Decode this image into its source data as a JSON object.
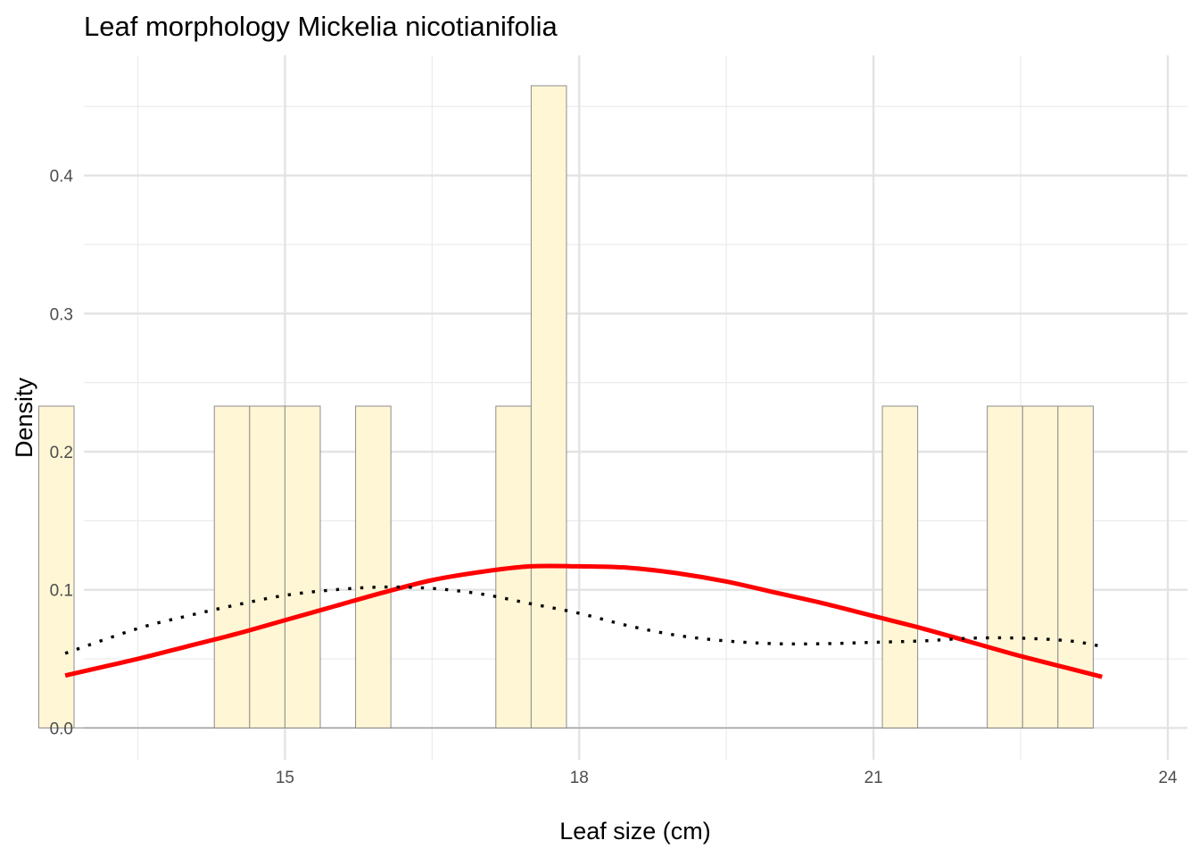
{
  "chart_data": {
    "type": "bar",
    "title": "Leaf morphology Mickelia nicotianifolia",
    "xlabel": "Leaf size (cm)",
    "ylabel": "Density",
    "xlim": [
      12.95,
      24.2
    ],
    "ylim": [
      -0.023,
      0.487
    ],
    "x_ticks": [
      15,
      18,
      21,
      24
    ],
    "y_ticks": [
      0.0,
      0.1,
      0.2,
      0.3,
      0.4
    ],
    "x_tick_labels": [
      "15",
      "18",
      "21",
      "24"
    ],
    "y_tick_labels": [
      "0.0",
      "0.1",
      "0.2",
      "0.3",
      "0.4"
    ],
    "grid": true,
    "histogram": {
      "bin_width": 0.36,
      "fill": "#FFF6D5",
      "outline": "#8C8C8C",
      "bins": [
        {
          "start": 12.49,
          "end": 12.85,
          "density": 0.233
        },
        {
          "start": 14.28,
          "end": 14.64,
          "density": 0.233
        },
        {
          "start": 14.64,
          "end": 15.0,
          "density": 0.233
        },
        {
          "start": 15.0,
          "end": 15.36,
          "density": 0.233
        },
        {
          "start": 15.72,
          "end": 16.08,
          "density": 0.233
        },
        {
          "start": 17.15,
          "end": 17.51,
          "density": 0.233
        },
        {
          "start": 17.51,
          "end": 17.87,
          "density": 0.465
        },
        {
          "start": 21.09,
          "end": 21.45,
          "density": 0.233
        },
        {
          "start": 22.16,
          "end": 22.52,
          "density": 0.233
        },
        {
          "start": 22.52,
          "end": 22.88,
          "density": 0.233
        },
        {
          "start": 22.88,
          "end": 23.24,
          "density": 0.233
        }
      ]
    },
    "series": [
      {
        "style": "solid",
        "color": "#FF0000",
        "x": [
          12.76,
          13.5,
          14.0,
          14.5,
          15.0,
          15.5,
          16.0,
          16.5,
          17.0,
          17.5,
          18.0,
          18.5,
          19.0,
          19.5,
          20.0,
          20.5,
          21.0,
          21.5,
          22.0,
          22.5,
          23.0,
          23.33
        ],
        "y": [
          0.038,
          0.05,
          0.059,
          0.068,
          0.078,
          0.088,
          0.098,
          0.107,
          0.113,
          0.117,
          0.117,
          0.116,
          0.112,
          0.106,
          0.098,
          0.09,
          0.081,
          0.072,
          0.062,
          0.052,
          0.043,
          0.037
        ]
      },
      {
        "style": "dotted",
        "color": "#000000",
        "x": [
          12.76,
          13.5,
          14.0,
          14.5,
          15.0,
          15.5,
          16.0,
          16.5,
          17.0,
          17.5,
          18.0,
          18.5,
          19.0,
          19.5,
          20.0,
          20.5,
          21.0,
          21.5,
          22.0,
          22.5,
          23.0,
          23.33
        ],
        "y": [
          0.054,
          0.072,
          0.081,
          0.089,
          0.096,
          0.1,
          0.102,
          0.101,
          0.097,
          0.09,
          0.083,
          0.074,
          0.067,
          0.063,
          0.061,
          0.061,
          0.062,
          0.063,
          0.065,
          0.065,
          0.063,
          0.059
        ]
      }
    ]
  }
}
